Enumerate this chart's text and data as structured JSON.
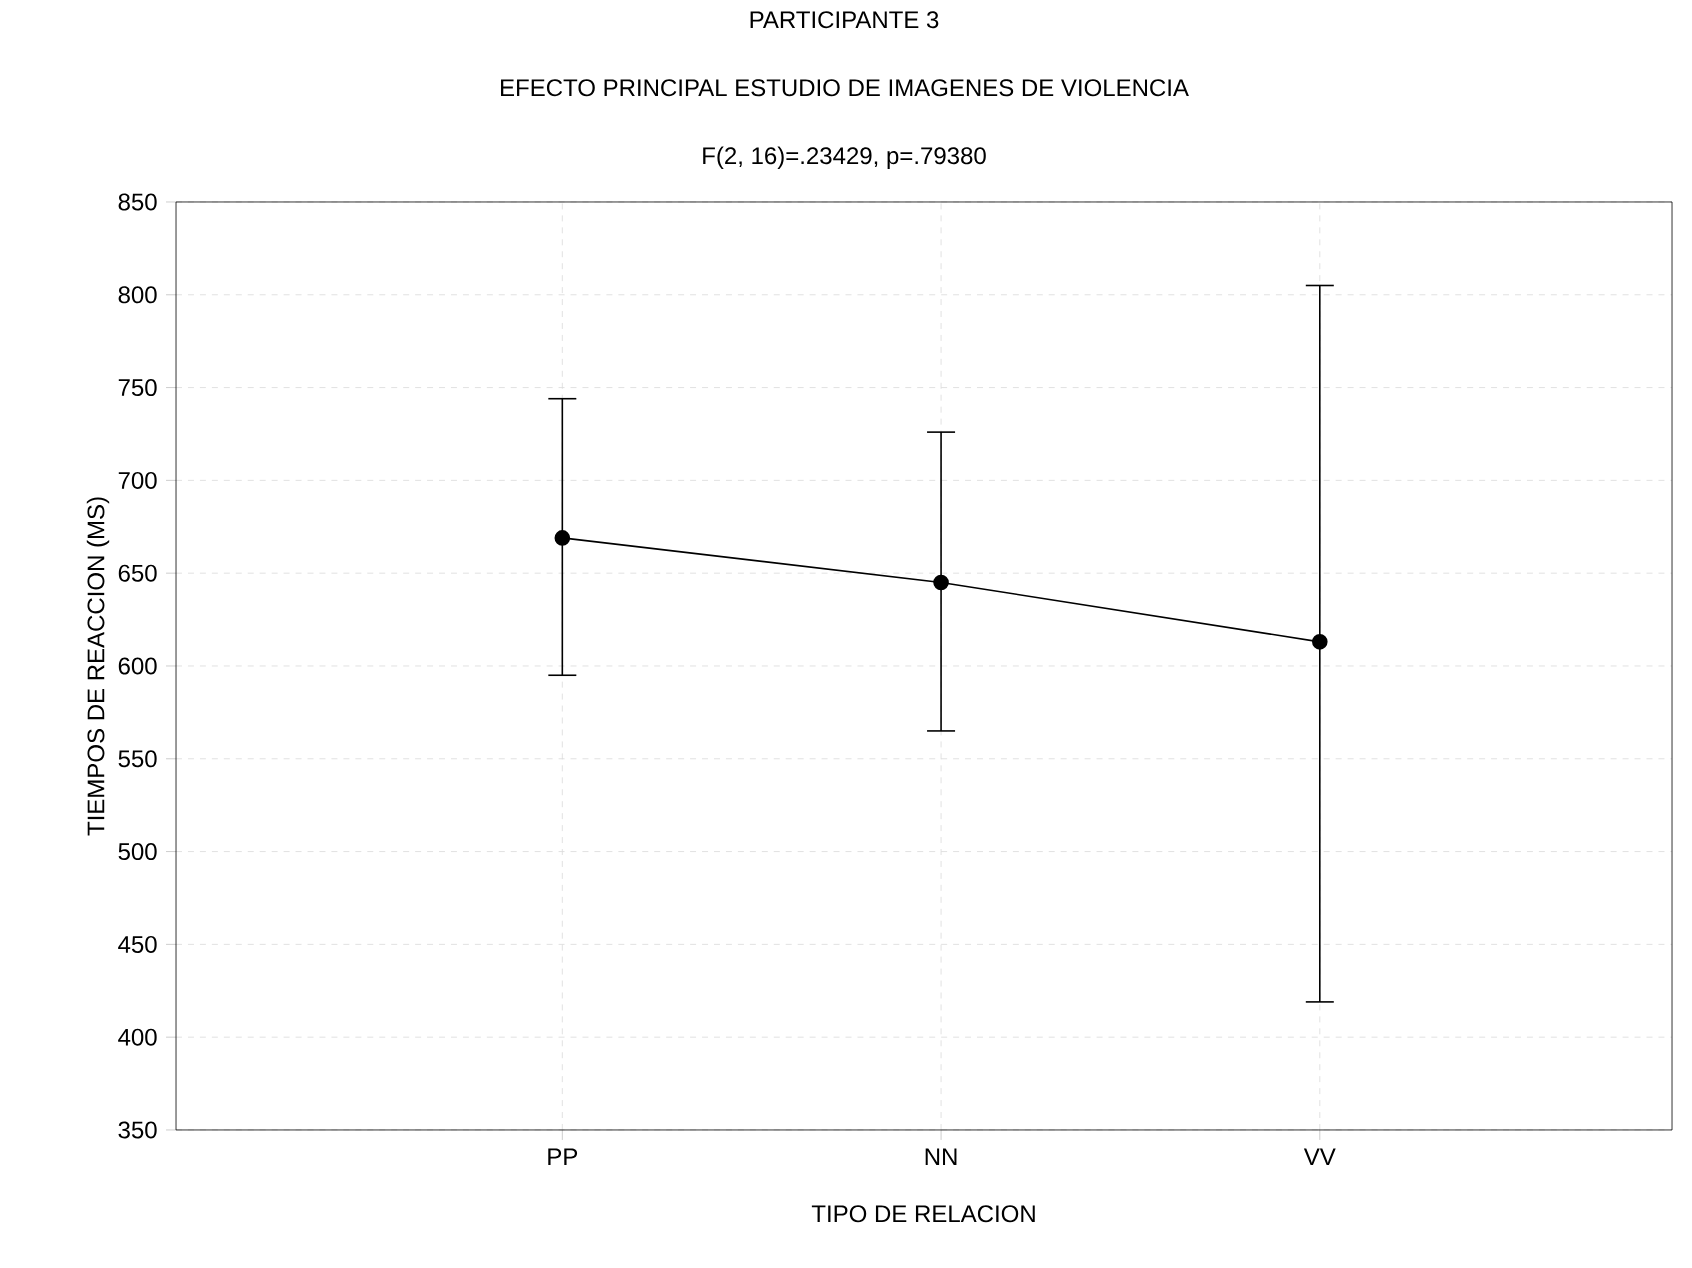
{
  "chart_data": {
    "type": "line",
    "title": "PARTICIPANTE 3",
    "subtitle": "EFECTO PRINCIPAL ESTUDIO DE IMAGENES DE VIOLENCIA",
    "annotations": [
      "F(2, 16)=.23429, p=.79380"
    ],
    "xlabel": "TIPO DE RELACION",
    "ylabel": "TIEMPOS DE REACCION (MS)",
    "categories": [
      "PP",
      "NN",
      "VV"
    ],
    "series": [
      {
        "color": "#000000",
        "values": [
          669,
          645,
          613
        ],
        "errors": [
          [
            595,
            744
          ],
          [
            565,
            726
          ],
          [
            419,
            805
          ]
        ]
      }
    ],
    "ylim": [
      350,
      850
    ],
    "yticks": [
      350,
      400,
      450,
      500,
      550,
      600,
      650,
      700,
      750,
      800,
      850
    ],
    "grid": true,
    "marker": "circle",
    "line_style": "solid"
  }
}
